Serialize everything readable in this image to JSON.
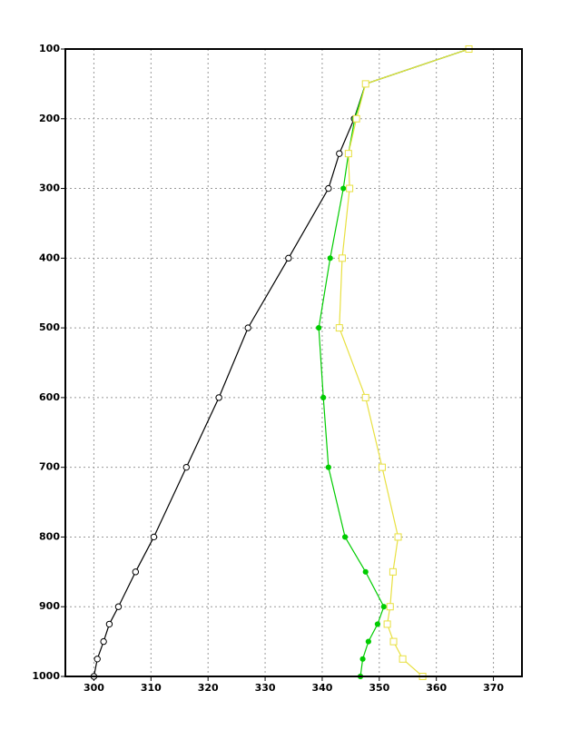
{
  "chart_data": {
    "type": "profile",
    "y": [
      100,
      150,
      200,
      250,
      300,
      400,
      500,
      600,
      700,
      800,
      850,
      900,
      925,
      950,
      975,
      1000
    ],
    "series": [
      {
        "color": "#000000",
        "marker": "open-circle",
        "values": [
          365.7,
          347.6,
          345.6,
          343.0,
          341.1,
          334.1,
          327.0,
          321.9,
          316.2,
          310.5,
          307.3,
          304.3,
          302.7,
          301.7,
          300.6,
          300.0
        ]
      },
      {
        "color": "#00cc00",
        "marker": "dot",
        "values": [
          365.7,
          347.6,
          345.7,
          344.6,
          343.7,
          341.4,
          339.4,
          340.2,
          341.1,
          344.0,
          347.6,
          350.8,
          349.7,
          348.1,
          347.1,
          346.7
        ]
      },
      {
        "color": "#e8e040",
        "marker": "open-square",
        "values": [
          365.7,
          347.6,
          346.0,
          344.6,
          344.8,
          343.5,
          343.0,
          347.6,
          350.5,
          353.3,
          352.4,
          351.9,
          351.4,
          352.5,
          354.1,
          357.6
        ]
      }
    ],
    "xlim": [
      295,
      375
    ],
    "xticks": [
      300,
      310,
      320,
      330,
      340,
      350,
      360,
      370
    ],
    "ylim": [
      100,
      1000
    ],
    "yticks": [
      100,
      200,
      300,
      400,
      500,
      600,
      700,
      800,
      900,
      1000
    ],
    "y_inverted": true,
    "grid": true
  }
}
